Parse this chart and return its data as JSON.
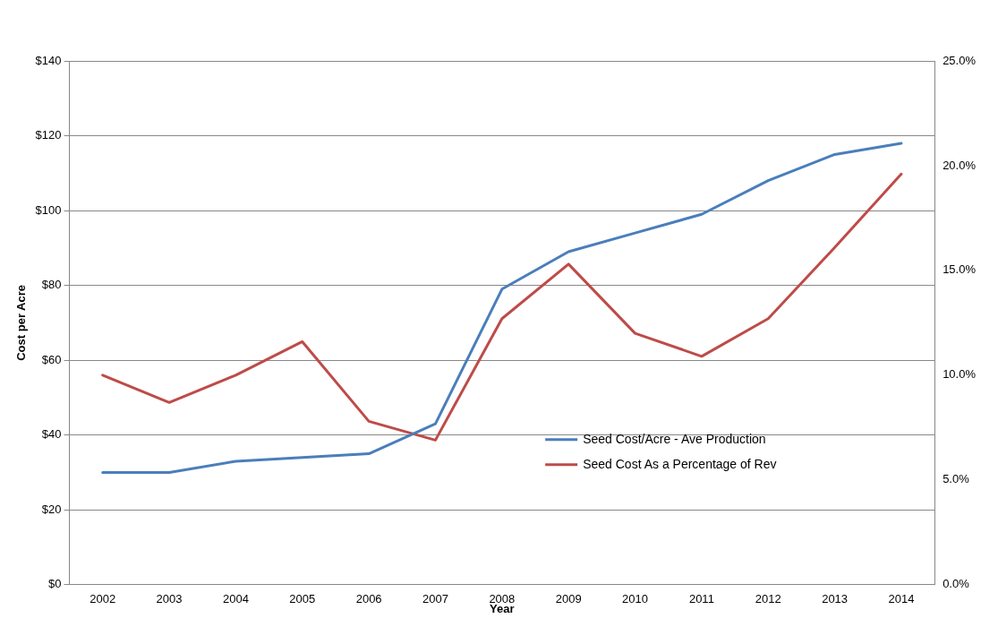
{
  "chart_data": {
    "type": "line",
    "xlabel": "Year",
    "ylabel": "Cost per Acre",
    "categories": [
      "2002",
      "2003",
      "2004",
      "2005",
      "2006",
      "2007",
      "2008",
      "2009",
      "2010",
      "2011",
      "2012",
      "2013",
      "2014"
    ],
    "series": [
      {
        "name": "Seed Cost/Acre - Ave Production",
        "color": "#4a7ebb",
        "values": [
          30,
          30,
          33,
          34,
          35,
          43,
          79,
          89,
          94,
          99,
          108,
          115,
          118
        ]
      },
      {
        "name": "Seed Cost As a Percentage of Rev",
        "color": "#be4b48",
        "axis": "y2",
        "values": [
          10.0,
          8.7,
          10.0,
          11.6,
          7.8,
          6.9,
          12.7,
          15.3,
          12.0,
          10.9,
          12.7,
          16.1,
          19.6
        ]
      }
    ],
    "ylim": [
      0,
      140
    ],
    "yticks": [
      {
        "value": 0,
        "label": "$0"
      },
      {
        "value": 20,
        "label": "$20"
      },
      {
        "value": 40,
        "label": "$40"
      },
      {
        "value": 60,
        "label": "$60"
      },
      {
        "value": 80,
        "label": "$80"
      },
      {
        "value": 100,
        "label": "$100"
      },
      {
        "value": 120,
        "label": "$120"
      },
      {
        "value": 140,
        "label": "$140"
      }
    ],
    "y2lim": [
      0,
      25
    ],
    "y2ticks": [
      {
        "value": 0,
        "label": "0.0%"
      },
      {
        "value": 5,
        "label": "5.0%"
      },
      {
        "value": 10,
        "label": "10.0%"
      },
      {
        "value": 15,
        "label": "15.0%"
      },
      {
        "value": 20,
        "label": "20.0%"
      },
      {
        "value": 25,
        "label": "25.0%"
      }
    ],
    "grid": "y",
    "legend": "bottom right",
    "marker": "none",
    "line_style": "solid"
  }
}
